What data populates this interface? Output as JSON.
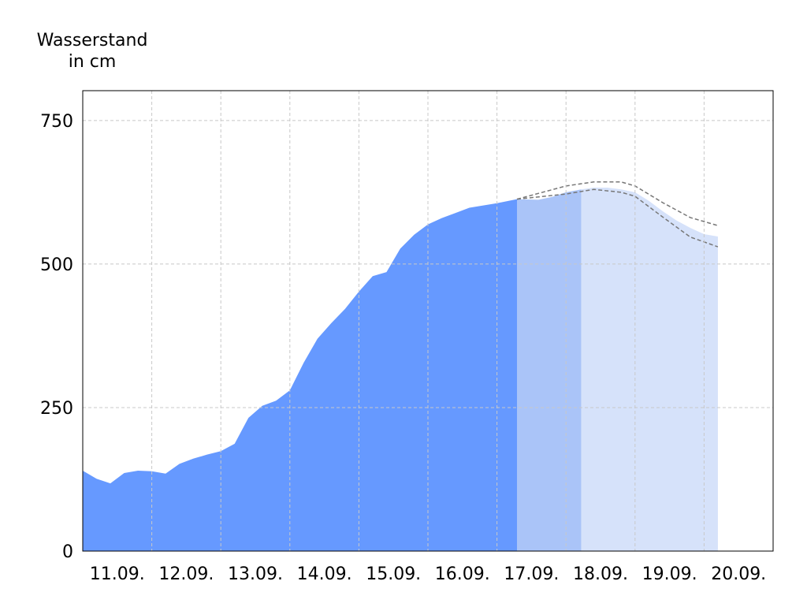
{
  "chart_data": {
    "type": "area",
    "y_label_lines": [
      "Wasserstand",
      "in cm"
    ],
    "xlim": [
      0,
      10
    ],
    "ylim": [
      0,
      802
    ],
    "yticks": [
      0,
      250,
      500,
      750
    ],
    "xticks": [
      {
        "value": 0.5,
        "label": "11.09."
      },
      {
        "value": 1.5,
        "label": "12.09."
      },
      {
        "value": 2.5,
        "label": "13.09."
      },
      {
        "value": 3.5,
        "label": "14.09."
      },
      {
        "value": 4.5,
        "label": "15.09."
      },
      {
        "value": 5.5,
        "label": "16.09."
      },
      {
        "value": 6.5,
        "label": "17.09."
      },
      {
        "value": 7.5,
        "label": "18.09."
      },
      {
        "value": 8.5,
        "label": "19.09."
      },
      {
        "value": 9.5,
        "label": "20.09."
      }
    ],
    "grid": true,
    "series": [
      {
        "style": "area",
        "color": "#6699ff",
        "x": [
          0,
          0.2,
          0.4,
          0.6,
          0.8,
          1.0,
          1.2,
          1.4,
          1.6,
          1.8,
          2.0,
          2.2,
          2.4,
          2.6,
          2.8,
          3.0,
          3.2,
          3.4,
          3.6,
          3.8,
          4.0,
          4.2,
          4.4,
          4.6,
          4.8,
          5.0,
          5.2,
          5.4,
          5.6,
          5.8,
          6.0,
          6.29
        ],
        "values": [
          140,
          126,
          118,
          136,
          140,
          139,
          135,
          152,
          161,
          168,
          174,
          187,
          232,
          253,
          262,
          280,
          328,
          370,
          397,
          422,
          452,
          479,
          486,
          527,
          551,
          569,
          580,
          589,
          598,
          602,
          606,
          613
        ]
      },
      {
        "style": "area",
        "color": "#aac4f8",
        "x": [
          6.29,
          6.6,
          6.8,
          7.0,
          7.22
        ],
        "values": [
          613,
          612,
          617,
          625,
          630
        ]
      },
      {
        "style": "area",
        "color": "#d6e2fa",
        "x": [
          7.22,
          7.4,
          7.6,
          7.8,
          8.0,
          8.2,
          8.4,
          8.6,
          8.8,
          9.0,
          9.2
        ],
        "values": [
          630,
          633,
          633,
          630,
          625,
          610,
          592,
          576,
          563,
          552,
          548
        ]
      },
      {
        "style": "dashed",
        "color": "#777777",
        "x": [
          6.29,
          7.0,
          7.4,
          7.8,
          8.0,
          8.4,
          8.8,
          9.2
        ],
        "values": [
          613,
          636,
          643,
          643,
          636,
          607,
          581,
          567
        ]
      },
      {
        "style": "dashed",
        "color": "#777777",
        "x": [
          6.29,
          7.0,
          7.4,
          7.8,
          8.0,
          8.4,
          8.8,
          9.2
        ],
        "values": [
          613,
          622,
          630,
          625,
          618,
          582,
          547,
          530
        ]
      }
    ]
  }
}
